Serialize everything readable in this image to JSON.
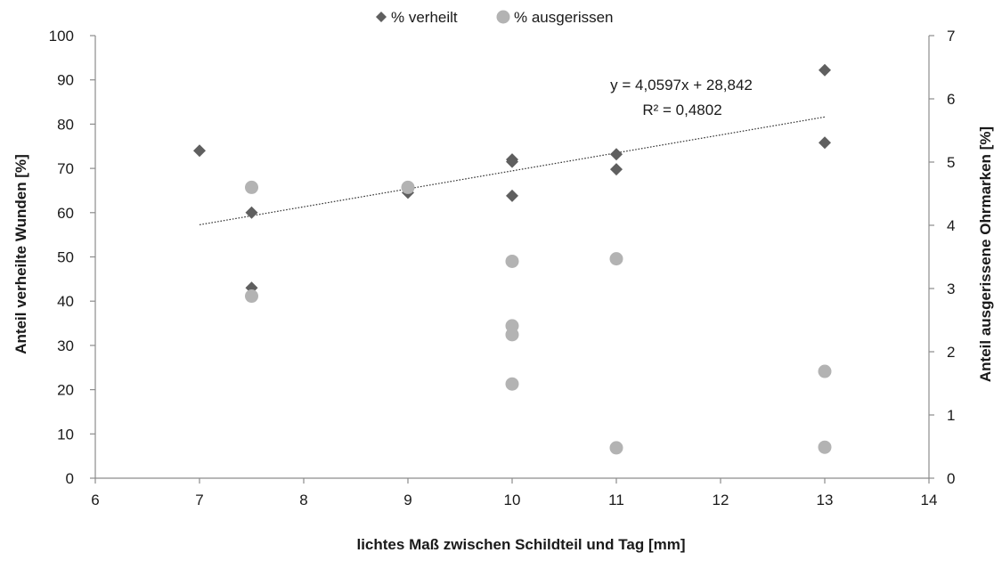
{
  "chart_data": {
    "type": "scatter",
    "title": "",
    "xlabel": "lichtes Maß zwischen Schildteil und Tag [mm]",
    "ylabel": "Anteil verheilte Wunden [%]",
    "y2label": "Anteil ausgerissene Ohrmarken [%]",
    "xlim": [
      6,
      14
    ],
    "ylim": [
      0,
      100
    ],
    "y2lim": [
      0,
      7
    ],
    "xticks": [
      "6",
      "7",
      "8",
      "9",
      "10",
      "11",
      "12",
      "13",
      "14"
    ],
    "yticks": [
      "0",
      "10",
      "20",
      "30",
      "40",
      "50",
      "60",
      "70",
      "80",
      "90",
      "100"
    ],
    "y2ticks": [
      "0",
      "1",
      "2",
      "3",
      "4",
      "5",
      "6",
      "7"
    ],
    "legend_position": "top-center",
    "grid": false,
    "series": [
      {
        "name": "% verheilt",
        "axis": "left",
        "marker": "diamond",
        "color": "#5f5f5f",
        "x": [
          7,
          7.5,
          7.5,
          9,
          10,
          10,
          10,
          11,
          11,
          13,
          13
        ],
        "y": [
          74,
          60,
          43,
          64.5,
          72,
          71.5,
          63.8,
          73.2,
          69.8,
          92.2,
          75.8
        ]
      },
      {
        "name": "% ausgerissen",
        "axis": "right",
        "marker": "circle",
        "color": "#b3b3b3",
        "x": [
          7.5,
          7.5,
          9,
          10,
          10,
          10,
          10,
          11,
          11,
          13,
          13
        ],
        "y": [
          4.6,
          2.88,
          4.6,
          3.43,
          2.41,
          2.27,
          1.49,
          3.47,
          0.48,
          1.69,
          0.49
        ]
      }
    ],
    "trendline": {
      "series": "% verheilt",
      "slope": 4.0597,
      "intercept": 28.842,
      "x_range": [
        7,
        13
      ],
      "equation": "y = 4,0597x + 28,842",
      "r_squared": "R² = 0,4802"
    }
  }
}
